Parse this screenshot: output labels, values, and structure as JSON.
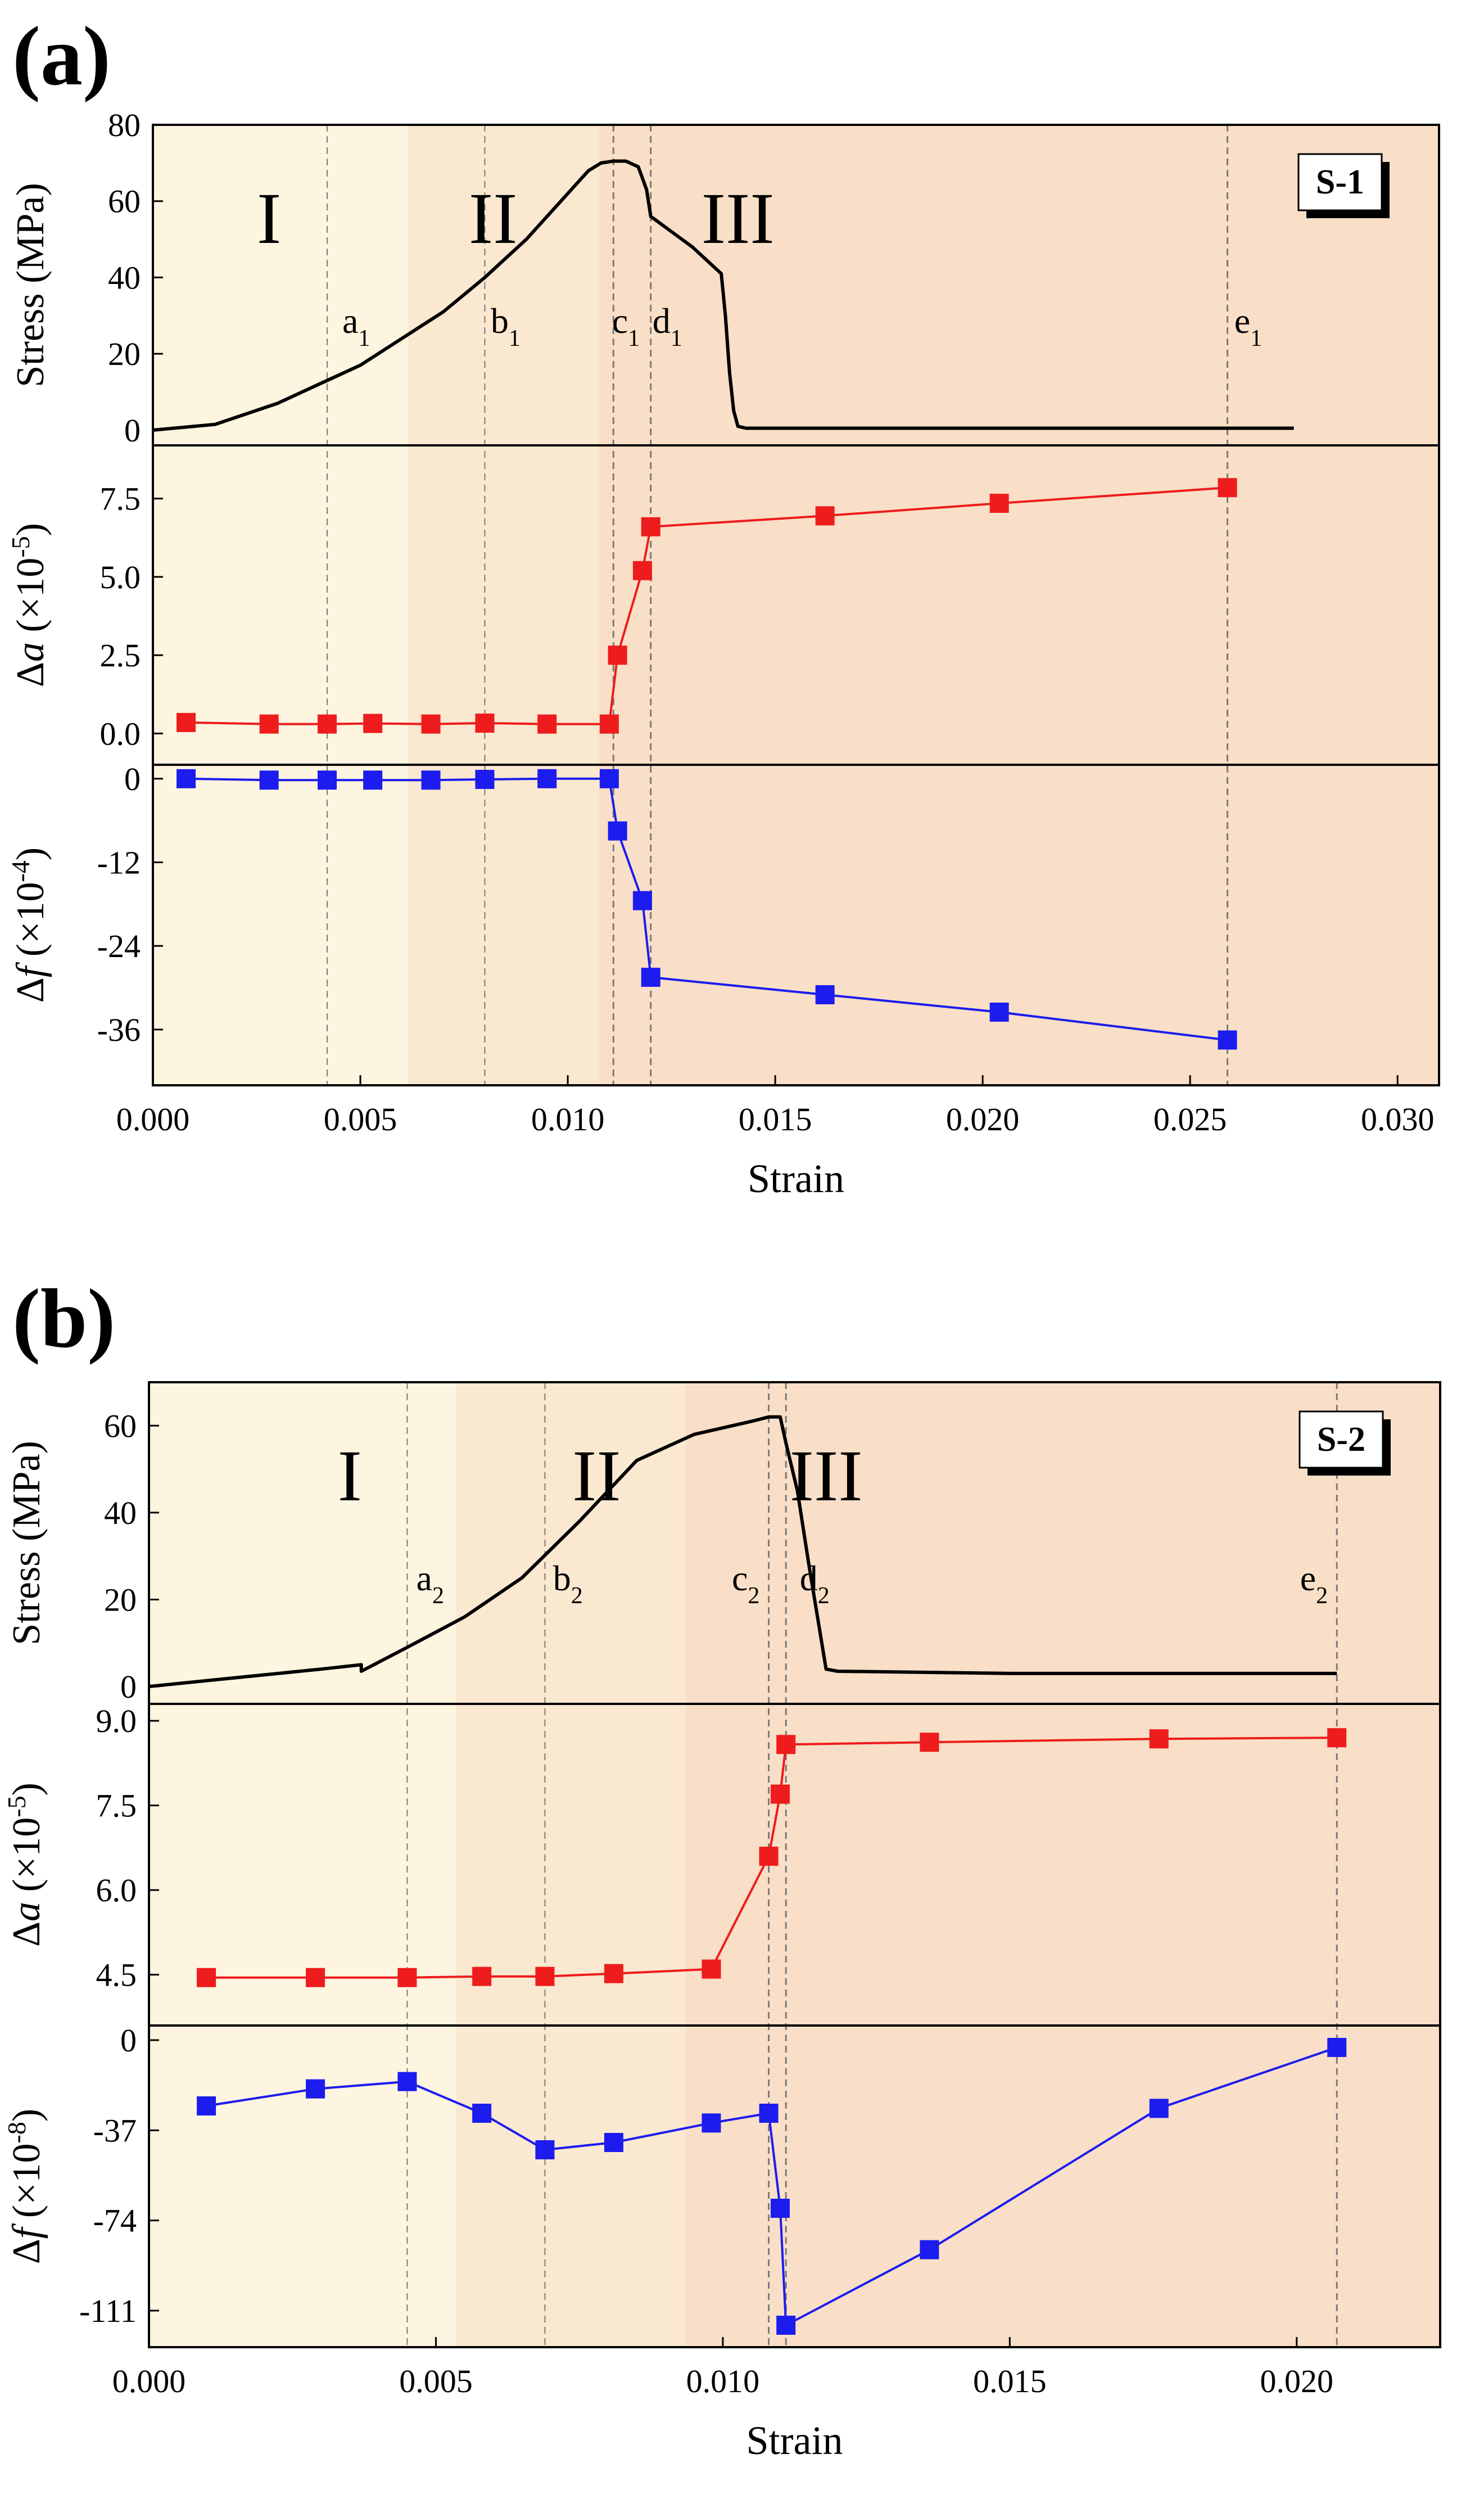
{
  "figure": {
    "panel_letter_a": "(a)",
    "panel_letter_b": "(b)"
  },
  "chart_data": [
    {
      "id": "a",
      "type": "line",
      "panel_label": "(a)",
      "specimen": "S-1",
      "xlabel": "Strain",
      "xlim": [
        0,
        0.031
      ],
      "xticks": [
        "0.000",
        "0.005",
        "0.010",
        "0.015",
        "0.020",
        "0.025",
        "0.030"
      ],
      "xtick_values": [
        0,
        0.005,
        0.01,
        0.015,
        0.02,
        0.025,
        0.03
      ],
      "stage_labels": [
        "I",
        "II",
        "III"
      ],
      "stage_bounds": [
        0,
        0.00615,
        0.01075,
        0.031
      ],
      "stage_colors": [
        "#fdf5e0",
        "#fbe8d0",
        "#f9dfc7"
      ],
      "stage_label_x": [
        0.0028,
        0.0082,
        0.0141
      ],
      "event_lines": [
        {
          "label": "a",
          "sub": "1",
          "x": 0.0042,
          "label_x": 0.0049
        },
        {
          "label": "b",
          "sub": "1",
          "x": 0.008,
          "label_x": 0.0085
        },
        {
          "label": "c",
          "sub": "1",
          "x": 0.0111,
          "label_x": 0.0114
        },
        {
          "label": "d",
          "sub": "1",
          "x": 0.012,
          "label_x": 0.0124
        },
        {
          "label": "e",
          "sub": "1",
          "x": 0.0259,
          "label_x": 0.0264
        }
      ],
      "subplots": [
        {
          "name": "stress",
          "ylabel": "Stress (MPa)",
          "ylim": [
            -4,
            80
          ],
          "yticks": [
            "0",
            "20",
            "40",
            "60",
            "80"
          ],
          "ytick_values": [
            0,
            20,
            40,
            60,
            80
          ],
          "color": "#000000",
          "markers": false,
          "x": [
            0,
            0.0015,
            0.003,
            0.004,
            0.005,
            0.006,
            0.007,
            0.008,
            0.009,
            0.0095,
            0.01,
            0.0105,
            0.0108,
            0.0111,
            0.0114,
            0.0117,
            0.0119,
            0.012,
            0.0125,
            0.013,
            0.0137,
            0.0138,
            0.0139,
            0.014,
            0.0141,
            0.0143,
            0.015,
            0.02,
            0.0275
          ],
          "y": [
            0,
            1.5,
            7,
            12,
            17,
            24,
            31,
            40,
            50,
            56,
            62,
            68,
            70,
            70.5,
            70.5,
            69,
            63,
            56,
            52,
            48,
            41,
            30,
            15,
            5,
            1,
            0.5,
            0.5,
            0.5,
            0.5
          ]
        },
        {
          "name": "delta_a",
          "ylabel": "Δa (×10",
          "ylabel_italic": "a",
          "ylabel_exp": "-5",
          "ylim": [
            -1,
            9.2
          ],
          "yticks": [
            "0.0",
            "2.5",
            "5.0",
            "7.5"
          ],
          "ytick_values": [
            0,
            2.5,
            5,
            7.5
          ],
          "color": "#ee1c1c",
          "markers": true,
          "x": [
            0.0008,
            0.0028,
            0.0042,
            0.0053,
            0.0067,
            0.008,
            0.0095,
            0.011,
            0.0112,
            0.0118,
            0.012,
            0.0162,
            0.0204,
            0.0259
          ],
          "y": [
            0.35,
            0.3,
            0.3,
            0.32,
            0.3,
            0.33,
            0.3,
            0.3,
            2.5,
            5.2,
            6.6,
            6.95,
            7.35,
            7.85
          ]
        },
        {
          "name": "delta_f",
          "ylabel": "Δf (×10",
          "ylabel_italic": "f",
          "ylabel_exp": "-4",
          "ylim": [
            -44,
            2
          ],
          "yticks": [
            "0",
            "-12",
            "-24",
            "-36"
          ],
          "ytick_values": [
            0,
            -12,
            -24,
            -36
          ],
          "color": "#1c1cee",
          "markers": true,
          "x": [
            0.0008,
            0.0028,
            0.0042,
            0.0053,
            0.0067,
            0.008,
            0.0095,
            0.011,
            0.0112,
            0.0118,
            0.012,
            0.0162,
            0.0204,
            0.0259
          ],
          "y": [
            0,
            -0.2,
            -0.2,
            -0.2,
            -0.2,
            -0.1,
            0,
            0,
            -7.5,
            -17.5,
            -28.5,
            -31,
            -33.5,
            -37.5
          ]
        }
      ]
    },
    {
      "id": "b",
      "type": "line",
      "panel_label": "(b)",
      "specimen": "S-2",
      "xlabel": "Strain",
      "xlim": [
        0,
        0.0225
      ],
      "xticks": [
        "0.000",
        "0.005",
        "0.010",
        "0.015",
        "0.020"
      ],
      "xtick_values": [
        0,
        0.005,
        0.01,
        0.015,
        0.02
      ],
      "stage_labels": [
        "I",
        "II",
        "III"
      ],
      "stage_bounds": [
        0,
        0.00535,
        0.00935,
        0.0225
      ],
      "stage_colors": [
        "#fdf5e0",
        "#fbe8d0",
        "#f9dfc7"
      ],
      "stage_label_x": [
        0.0035,
        0.0078,
        0.0118
      ],
      "event_lines": [
        {
          "label": "a",
          "sub": "2",
          "x": 0.0045,
          "label_x": 0.0049
        },
        {
          "label": "b",
          "sub": "2",
          "x": 0.0069,
          "label_x": 0.0073
        },
        {
          "label": "c",
          "sub": "2",
          "x": 0.0108,
          "label_x": 0.0104
        },
        {
          "label": "d",
          "sub": "2",
          "x": 0.0111,
          "label_x": 0.0116
        },
        {
          "label": "e",
          "sub": "2",
          "x": 0.0207,
          "label_x": 0.0203
        }
      ],
      "subplots": [
        {
          "name": "stress",
          "ylabel": "Stress (MPa)",
          "ylim": [
            -4,
            70
          ],
          "yticks": [
            "0",
            "20",
            "40",
            "60"
          ],
          "ytick_values": [
            0,
            20,
            40,
            60
          ],
          "color": "#000000",
          "markers": false,
          "x": [
            0,
            0.0015,
            0.003,
            0.0037,
            0.0037,
            0.0045,
            0.0055,
            0.0065,
            0.0075,
            0.0085,
            0.0095,
            0.01,
            0.0105,
            0.0108,
            0.011,
            0.0111,
            0.0113,
            0.0115,
            0.0117,
            0.0118,
            0.012,
            0.015,
            0.0207
          ],
          "y": [
            0,
            2,
            4,
            5,
            3.5,
            9,
            16,
            25,
            38,
            52,
            58,
            59.5,
            61,
            62,
            62,
            56,
            45,
            28,
            12,
            4,
            3.5,
            3,
            3
          ]
        },
        {
          "name": "delta_a",
          "ylabel": "Δa (×10",
          "ylabel_italic": "a",
          "ylabel_exp": "-5",
          "ylim": [
            3.6,
            9.3
          ],
          "yticks": [
            "4.5",
            "6.0",
            "7.5",
            "9.0"
          ],
          "ytick_values": [
            4.5,
            6.0,
            7.5,
            9.0
          ],
          "color": "#ee1c1c",
          "markers": true,
          "x": [
            0.001,
            0.0029,
            0.0045,
            0.0058,
            0.0069,
            0.0081,
            0.0098,
            0.0108,
            0.011,
            0.0111,
            0.0136,
            0.0176,
            0.0207
          ],
          "y": [
            4.45,
            4.45,
            4.45,
            4.47,
            4.47,
            4.52,
            4.6,
            6.6,
            7.7,
            8.58,
            8.62,
            8.68,
            8.7
          ]
        },
        {
          "name": "delta_f",
          "ylabel": "Δf (×10",
          "ylabel_italic": "f",
          "ylabel_exp": "-8",
          "ylim": [
            -126,
            6
          ],
          "yticks": [
            "0",
            "-37",
            "-74",
            "-111"
          ],
          "ytick_values": [
            0,
            -37,
            -74,
            -111
          ],
          "color": "#1c1cee",
          "markers": true,
          "x": [
            0.001,
            0.0029,
            0.0045,
            0.0058,
            0.0069,
            0.0081,
            0.0098,
            0.0108,
            0.011,
            0.0111,
            0.0136,
            0.0176,
            0.0207
          ],
          "y": [
            -27,
            -20,
            -17,
            -30,
            -45,
            -42,
            -34,
            -30,
            -69,
            -117,
            -86,
            -28,
            -3
          ]
        }
      ]
    }
  ]
}
